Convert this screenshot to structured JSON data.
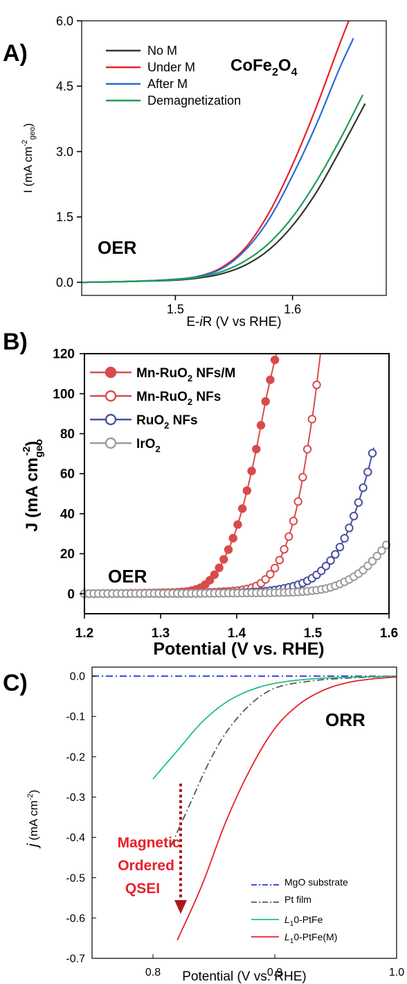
{
  "chart_data": [
    {
      "panel_label": "A)",
      "type": "line",
      "title": "",
      "annotations": [
        "CoFe2O4",
        "OER"
      ],
      "compound": {
        "base": "CoFe",
        "sub1": "2",
        "mid": "O",
        "sub2": "4"
      },
      "ylabel": {
        "main": "I",
        "unit_open": "(mA cm",
        "sup": "-2",
        "sub": "geo",
        "unit_close": ")"
      },
      "xlabel": {
        "prefix": "E-",
        "italic": "i",
        "suffix": "R (V vs RHE)"
      },
      "xlim": [
        1.42,
        1.68
      ],
      "ylim": [
        -0.3,
        6.0
      ],
      "xticks": [
        1.5,
        1.6
      ],
      "xtick_labels": [
        "1.5",
        "1.6"
      ],
      "yticks": [
        0.0,
        1.5,
        3.0,
        4.5,
        6.0
      ],
      "ytick_labels": [
        "0.0",
        "1.5",
        "3.0",
        "4.5",
        "6.0"
      ],
      "legend_position": "top-left",
      "series": [
        {
          "name": "No M",
          "color": "#333333",
          "x": [
            1.42,
            1.46,
            1.5,
            1.52,
            1.54,
            1.56,
            1.58,
            1.6,
            1.62,
            1.64,
            1.662
          ],
          "y": [
            0.0,
            0.02,
            0.05,
            0.1,
            0.2,
            0.4,
            0.75,
            1.3,
            2.05,
            3.0,
            4.1
          ]
        },
        {
          "name": "Under M",
          "color": "#e8202a",
          "x": [
            1.42,
            1.46,
            1.5,
            1.52,
            1.54,
            1.56,
            1.58,
            1.6,
            1.62,
            1.64,
            1.648
          ],
          "y": [
            0.0,
            0.02,
            0.07,
            0.14,
            0.35,
            0.8,
            1.6,
            2.7,
            4.0,
            5.45,
            6.0
          ]
        },
        {
          "name": "After M",
          "color": "#2a6ad6",
          "x": [
            1.42,
            1.46,
            1.5,
            1.52,
            1.54,
            1.56,
            1.58,
            1.6,
            1.62,
            1.64,
            1.652
          ],
          "y": [
            0.0,
            0.02,
            0.07,
            0.14,
            0.32,
            0.75,
            1.45,
            2.45,
            3.6,
            4.9,
            5.6
          ]
        },
        {
          "name": "Demagnetization",
          "color": "#1e9e55",
          "x": [
            1.42,
            1.46,
            1.5,
            1.52,
            1.54,
            1.56,
            1.58,
            1.6,
            1.62,
            1.64,
            1.66
          ],
          "y": [
            0.0,
            0.02,
            0.06,
            0.12,
            0.25,
            0.5,
            0.9,
            1.5,
            2.3,
            3.25,
            4.3
          ]
        }
      ]
    },
    {
      "panel_label": "B)",
      "type": "line",
      "title": "",
      "annotations": [
        "OER"
      ],
      "ylabel": {
        "main": "J (mA cm",
        "sub": "geo",
        "sup": "-2",
        "close": ")"
      },
      "xlabel": "Potential (V vs. RHE)",
      "xlim": [
        1.2,
        1.6
      ],
      "ylim": [
        -10,
        120
      ],
      "xticks": [
        1.2,
        1.3,
        1.4,
        1.5,
        1.6
      ],
      "xtick_labels": [
        "1.2",
        "1.3",
        "1.4",
        "1.5",
        "1.6"
      ],
      "yticks": [
        0,
        20,
        40,
        60,
        80,
        100,
        120
      ],
      "ytick_labels": [
        "0",
        "20",
        "40",
        "60",
        "80",
        "100",
        "120"
      ],
      "legend_position": "top-left",
      "series": [
        {
          "name": "Mn-RuO2 NFs/M",
          "legend_parts": [
            "Mn-RuO",
            "2",
            " NFs/M"
          ],
          "color": "#d94b4b",
          "marker": "filled",
          "x": [
            1.2,
            1.3,
            1.34,
            1.36,
            1.38,
            1.4,
            1.42,
            1.44,
            1.452
          ],
          "y": [
            0,
            0.5,
            1.5,
            5,
            15,
            33,
            62,
            100,
            120
          ]
        },
        {
          "name": "Mn-RuO2 NFs",
          "legend_parts": [
            "Mn-RuO",
            "2",
            " NFs"
          ],
          "color": "#d94b4b",
          "marker": "open",
          "x": [
            1.2,
            1.3,
            1.38,
            1.42,
            1.44,
            1.46,
            1.48,
            1.5,
            1.51
          ],
          "y": [
            0,
            0.3,
            1,
            3,
            8,
            20,
            45,
            90,
            120
          ]
        },
        {
          "name": "RuO2 NFs",
          "legend_parts": [
            "RuO",
            "2",
            " NFs"
          ],
          "color": "#4a4f9e",
          "marker": "open",
          "x": [
            1.2,
            1.4,
            1.46,
            1.5,
            1.53,
            1.55,
            1.57,
            1.58
          ],
          "y": [
            0,
            0.5,
            2.5,
            8,
            20,
            35,
            58,
            73
          ]
        },
        {
          "name": "IrO2",
          "legend_parts": [
            "IrO",
            "2",
            ""
          ],
          "color": "#9a9a9a",
          "marker": "open",
          "x": [
            1.2,
            1.45,
            1.5,
            1.53,
            1.56,
            1.58,
            1.6
          ],
          "y": [
            0,
            0.5,
            1.5,
            4,
            10,
            17,
            26
          ]
        }
      ]
    },
    {
      "panel_label": "C)",
      "type": "line",
      "title": "",
      "annotations": [
        "ORR"
      ],
      "annotation_arrow_text": [
        "Magnetic",
        "Ordered",
        "QSEI"
      ],
      "ylabel": {
        "italic": "j",
        "rest": " (mA cm",
        "sup": "-2",
        "close": ")"
      },
      "xlabel": "Potential (V vs. RHE)",
      "xlim": [
        0.75,
        1.0
      ],
      "ylim": [
        -0.7,
        0.0
      ],
      "xticks": [
        0.8,
        0.9,
        1.0
      ],
      "xtick_labels": [
        "0.8",
        "0.9",
        "1.0"
      ],
      "yticks": [
        0.0,
        -0.1,
        -0.2,
        -0.3,
        -0.4,
        -0.5,
        -0.6,
        -0.7
      ],
      "ytick_labels": [
        "0.0",
        "-0.1",
        "-0.2",
        "-0.3",
        "-0.4",
        "-0.5",
        "-0.6",
        "-0.7"
      ],
      "legend_position": "bottom-right",
      "series": [
        {
          "name": "MgO substrate",
          "legend_parts": [
            "",
            "",
            "MgO substrate"
          ],
          "color": "#2233dd",
          "dash": "dashdot",
          "x": [
            0.75,
            1.0
          ],
          "y": [
            0.0,
            0.0
          ]
        },
        {
          "name": "Pt film",
          "legend_parts": [
            "",
            "",
            "Pt film"
          ],
          "color": "#555555",
          "dash": "dashdot",
          "x": [
            0.815,
            0.83,
            0.845,
            0.86,
            0.88,
            0.9,
            0.93,
            0.96,
            1.0
          ],
          "y": [
            -0.42,
            -0.32,
            -0.22,
            -0.14,
            -0.07,
            -0.03,
            -0.012,
            -0.005,
            0.0
          ]
        },
        {
          "name": "L10-PtFe",
          "legend_parts": [
            "L",
            "1",
            "0-PtFe"
          ],
          "color": "#22c07a",
          "dash": "solid",
          "x": [
            0.8,
            0.82,
            0.84,
            0.86,
            0.88,
            0.9,
            0.93,
            0.96,
            1.0
          ],
          "y": [
            -0.255,
            -0.185,
            -0.115,
            -0.065,
            -0.035,
            -0.018,
            -0.007,
            -0.003,
            0.0
          ]
        },
        {
          "name": "L10-PtFe(M)",
          "legend_parts": [
            "L",
            "1",
            "0-PtFe(M)"
          ],
          "color": "#e8202a",
          "dash": "solid",
          "x": [
            0.82,
            0.84,
            0.86,
            0.88,
            0.9,
            0.92,
            0.94,
            0.96,
            0.98,
            1.0
          ],
          "y": [
            -0.655,
            -0.52,
            -0.36,
            -0.23,
            -0.13,
            -0.07,
            -0.035,
            -0.016,
            -0.007,
            -0.002
          ]
        }
      ]
    }
  ]
}
